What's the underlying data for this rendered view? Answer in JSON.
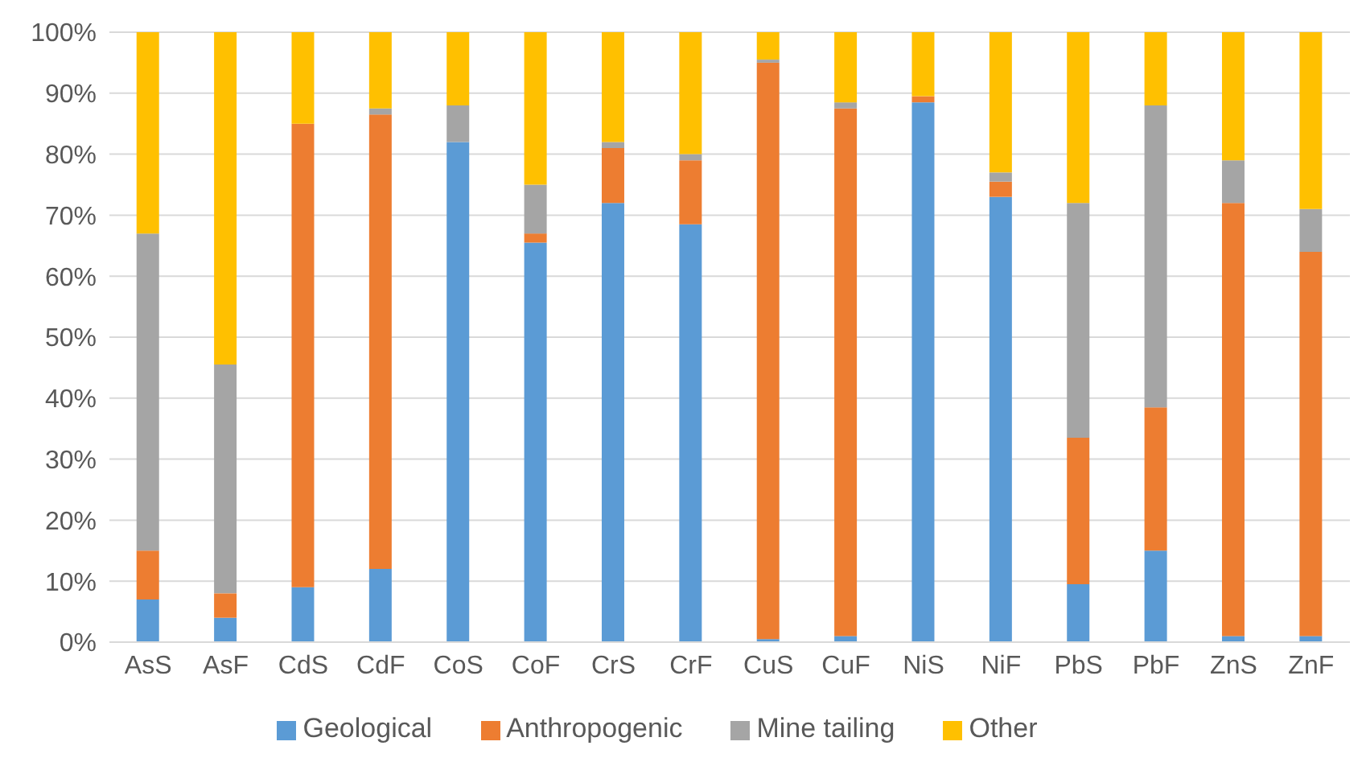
{
  "chart_data": {
    "type": "bar",
    "stacked": true,
    "categories": [
      "AsS",
      "AsF",
      "CdS",
      "CdF",
      "CoS",
      "CoF",
      "CrS",
      "CrF",
      "CuS",
      "CuF",
      "NiS",
      "NiF",
      "PbS",
      "PbF",
      "ZnS",
      "ZnF"
    ],
    "series": [
      {
        "name": "Geological",
        "color": "#5b9bd5",
        "values": [
          7,
          4,
          9,
          12,
          82,
          65.5,
          72,
          68.5,
          0.5,
          1,
          88.5,
          73,
          9.5,
          15,
          1,
          1
        ]
      },
      {
        "name": "Anthropogenic",
        "color": "#ed7d31",
        "values": [
          8,
          4,
          76,
          74.5,
          0,
          1.5,
          9,
          10.5,
          94.5,
          86.5,
          1,
          2.5,
          24,
          23.5,
          71,
          63
        ]
      },
      {
        "name": "Mine tailing",
        "color": "#a5a5a5",
        "values": [
          52,
          37.5,
          0,
          1,
          6,
          8,
          1,
          1,
          0.5,
          1,
          0,
          1.5,
          38.5,
          49.5,
          7,
          7
        ]
      },
      {
        "name": "Other",
        "color": "#ffc000",
        "values": [
          33,
          54.5,
          15,
          12.5,
          12,
          25,
          18,
          20,
          4.5,
          11.5,
          10.5,
          23,
          28,
          12,
          21,
          29
        ]
      }
    ],
    "ylim": [
      0,
      100
    ],
    "yticks": [
      {
        "value": 0,
        "label": "0%"
      },
      {
        "value": 10,
        "label": "10%"
      },
      {
        "value": 20,
        "label": "20%"
      },
      {
        "value": 30,
        "label": "30%"
      },
      {
        "value": 40,
        "label": "40%"
      },
      {
        "value": 50,
        "label": "50%"
      },
      {
        "value": 60,
        "label": "60%"
      },
      {
        "value": 70,
        "label": "70%"
      },
      {
        "value": 80,
        "label": "80%"
      },
      {
        "value": 90,
        "label": "90%"
      },
      {
        "value": 100,
        "label": "100%"
      }
    ],
    "grid": "y",
    "legend": "bottom"
  }
}
